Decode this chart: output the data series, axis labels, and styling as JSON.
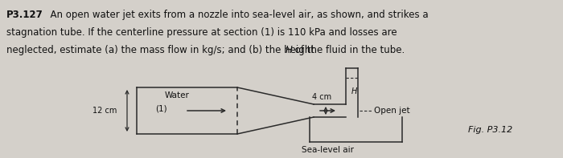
{
  "title_bold": "P3.127",
  "line1a": "  An open water jet exits from a nozzle into sea-level air, as shown, and strikes a",
  "line2": "stagnation tube. If the centerline pressure at section (1) is 110 kPa and losses are",
  "line3a": "neglected, estimate (a) the mass flow in kg/s; and (b) the height ",
  "line3b": "H",
  "line3c": " of the fluid in the tube.",
  "fig_label": "Fig. P3.12",
  "label_water": "Water",
  "label_12cm": "12 cm",
  "label_1": "(1)",
  "label_4cm": "4 cm",
  "label_H": "H",
  "label_open_jet": "Open jet",
  "label_sea_level": "Sea-level air",
  "bg_color": "#d4d0ca",
  "line_color": "#2a2a2a",
  "text_color": "#111111"
}
